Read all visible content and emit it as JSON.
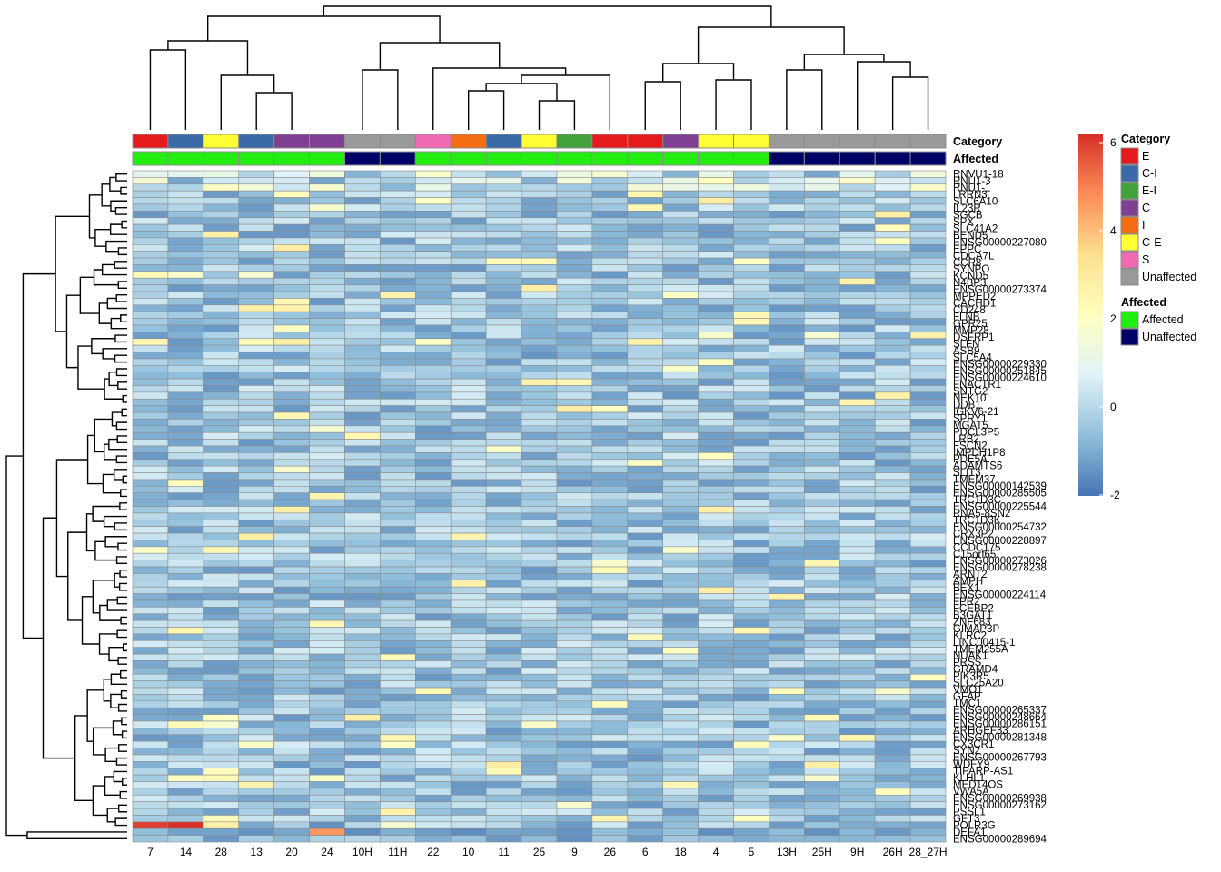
{
  "chart_data": {
    "type": "heatmap",
    "columns": [
      "7",
      "14",
      "28",
      "13",
      "20",
      "24",
      "10H",
      "11H",
      "22",
      "10",
      "11",
      "25",
      "9",
      "26",
      "6",
      "18",
      "4",
      "5",
      "13H",
      "25H",
      "9H",
      "26H",
      "28_27H"
    ],
    "column_annotations": {
      "Category": [
        "E",
        "C-I",
        "C-E",
        "C-I",
        "C",
        "C",
        "Unaffected",
        "Unaffected",
        "S",
        "I",
        "C-I",
        "C-E",
        "E-I",
        "E",
        "E",
        "C",
        "C-E",
        "C-E",
        "Unaffected",
        "Unaffected",
        "Unaffected",
        "Unaffected",
        "Unaffected"
      ],
      "Affected": [
        "Affected",
        "Affected",
        "Affected",
        "Affected",
        "Affected",
        "Affected",
        "Unaffected",
        "Unaffected",
        "Affected",
        "Affected",
        "Affected",
        "Affected",
        "Affected",
        "Affected",
        "Affected",
        "Affected",
        "Affected",
        "Affected",
        "Unaffected",
        "Unaffected",
        "Unaffected",
        "Unaffected",
        "Unaffected"
      ]
    },
    "annotation_labels": [
      "Category",
      "Affected"
    ],
    "row_labels_shown": [
      "RNVU1-18",
      "RNU1-3",
      "RNU1-1",
      "LRRN3",
      "SLC6A10",
      "IL23R",
      "SGCB",
      "SPX",
      "SLC41A2",
      "BEND5",
      "ENSG00000227080",
      "EPPC",
      "CDCA7L",
      "CCR8",
      "SYNPO",
      "KCND5",
      "N4BP3",
      "ENSG00000273374",
      "MPPED2",
      "CACHD1",
      "CD248",
      "FLNB",
      "GPR25",
      "MMP28",
      "DSFRP1",
      "SLFN",
      "ASB9",
      "SLC5A4",
      "ENSG00000229330",
      "ENSG00000251845",
      "ENSG00000224610",
      "FNACTR1",
      "SNTG2",
      "NEK10",
      "DDB1",
      "IGKV6-21",
      "SPRY1",
      "MGAT5",
      "PDCL3P5",
      "LRB2",
      "FSCN2",
      "IMPDH1P8",
      "PDE5A",
      "ADAMTS6",
      "SLIT3",
      "TMEM37",
      "ENSG00000142539",
      "ENSG00000285505",
      "TRC1D3C",
      "ENSG00000225544",
      "RNA5-8SN2",
      "TRC1D3K",
      "ENSG00000254732",
      "CRX3P2",
      "ENSG00000228897",
      "CCDC175",
      "C15orf65",
      "ENSG00000273026",
      "ENSG00000278238",
      "ARNT2",
      "AMPH",
      "BEX1",
      "ENSG00000224114",
      "FPR2",
      "FCEBP2",
      "B3GAT1",
      "ZNF683",
      "GIMAP3P",
      "KLRC2",
      "LINC00415-1",
      "TMEM255A",
      "NUAK1",
      "PRSS",
      "GRAMD4",
      "PIK3R5",
      "SLC25A20",
      "VMO1",
      "GFAP",
      "TMC1",
      "ENSG00000265337",
      "ENSG00000248664",
      "ENSG00000286151",
      "ARHGEF33",
      "ENSG00000281348",
      "CX3CR1",
      "SYN2",
      "ENSG00000267793",
      "WDFY9",
      "TIPARP-AS1",
      "KLHL1",
      "MED14OS",
      "VWA5A",
      "ENSG00000269938",
      "ENSG00000273162",
      "PSSL1",
      "GFT3",
      "POLR3G",
      "DEFA1",
      "ENSG00000289694"
    ],
    "n_rows": 100,
    "color_scale": {
      "min": -2,
      "max": 6,
      "ticks": [
        -2,
        0,
        2,
        4,
        6
      ],
      "colors": [
        "#4575b4",
        "#91bfdb",
        "#e0f3f8",
        "#ffffbf",
        "#fee090",
        "#fc8d59",
        "#d73027"
      ]
    },
    "notable_values": [
      {
        "row": "DEFA1",
        "column": "7",
        "value": 5.8
      },
      {
        "row": "DEFA1",
        "column": "14",
        "value": 6.0
      },
      {
        "row": "DEFA1",
        "column": "24",
        "value": -1.5
      },
      {
        "row": "ENSG00000289694",
        "column": "24",
        "value": 4.5
      }
    ],
    "legend": {
      "Category": [
        {
          "label": "E",
          "color": "#e41a1c"
        },
        {
          "label": "C-I",
          "color": "#3a6aa8"
        },
        {
          "label": "E-I",
          "color": "#41a13a"
        },
        {
          "label": "C",
          "color": "#7e3f92"
        },
        {
          "label": "I",
          "color": "#f46d12"
        },
        {
          "label": "C-E",
          "color": "#ffff33"
        },
        {
          "label": "S",
          "color": "#f06ab3"
        },
        {
          "label": "Unaffected",
          "color": "#999999"
        }
      ],
      "Affected": [
        {
          "label": "Affected",
          "color": "#22ee11"
        },
        {
          "label": "Unaffected",
          "color": "#020266"
        }
      ]
    }
  }
}
